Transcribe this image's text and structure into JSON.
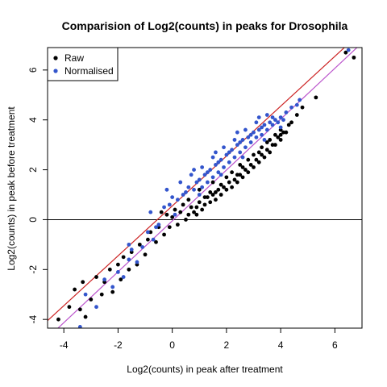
{
  "chart_data": {
    "type": "scatter",
    "title": "Comparision of Log2(counts) in peaks for Drosophila",
    "xlabel": "Log2(counts) in peak after treatment",
    "ylabel": "Log2(counts) in peak before treatment",
    "xlim": [
      -4.6,
      7.0
    ],
    "ylim": [
      -4.35,
      6.9
    ],
    "x_ticks": [
      -4,
      -2,
      0,
      2,
      4,
      6
    ],
    "y_ticks": [
      -4,
      -2,
      0,
      2,
      4,
      6
    ],
    "grid": false,
    "legend_position": "top-left",
    "legend": [
      {
        "label": "Raw",
        "color": "#000000"
      },
      {
        "label": "Normalised",
        "color": "#3355cc"
      }
    ],
    "reference_lines": [
      {
        "type": "hline",
        "y": 0,
        "color": "#000000"
      },
      {
        "type": "abline",
        "intercept": 0.55,
        "slope": 1.0,
        "color": "#cc2222"
      },
      {
        "type": "abline",
        "intercept": -0.05,
        "slope": 1.02,
        "color": "#bb55cc"
      }
    ],
    "series": [
      {
        "name": "Raw",
        "color": "#000000",
        "points": [
          [
            -4.2,
            -4.0
          ],
          [
            -3.8,
            -3.5
          ],
          [
            -3.6,
            -2.8
          ],
          [
            -3.4,
            -3.6
          ],
          [
            -3.3,
            -2.5
          ],
          [
            -3.2,
            -3.9
          ],
          [
            -3.0,
            -3.2
          ],
          [
            -2.8,
            -2.3
          ],
          [
            -2.6,
            -3.0
          ],
          [
            -2.5,
            -2.5
          ],
          [
            -2.3,
            -2.0
          ],
          [
            -2.2,
            -2.9
          ],
          [
            -2.0,
            -1.8
          ],
          [
            -1.9,
            -2.4
          ],
          [
            -1.8,
            -1.5
          ],
          [
            -1.6,
            -2.0
          ],
          [
            -1.5,
            -1.3
          ],
          [
            -1.3,
            -1.8
          ],
          [
            -1.2,
            -1.0
          ],
          [
            -1.0,
            -1.4
          ],
          [
            -0.9,
            -0.8
          ],
          [
            -0.8,
            -0.5
          ],
          [
            -0.6,
            -0.9
          ],
          [
            -0.5,
            -0.3
          ],
          [
            -0.4,
            0.3
          ],
          [
            -0.3,
            -0.6
          ],
          [
            -0.2,
            0.2
          ],
          [
            -0.1,
            -0.3
          ],
          [
            0.0,
            0.1
          ],
          [
            0.1,
            0.4
          ],
          [
            0.2,
            -0.2
          ],
          [
            0.3,
            0.3
          ],
          [
            0.4,
            0.6
          ],
          [
            0.5,
            0.0
          ],
          [
            0.6,
            0.2
          ],
          [
            0.7,
            0.5
          ],
          [
            0.8,
            0.3
          ],
          [
            0.9,
            0.5
          ],
          [
            1.0,
            0.7
          ],
          [
            1.1,
            0.4
          ],
          [
            1.2,
            0.6
          ],
          [
            1.3,
            0.9
          ],
          [
            1.4,
            0.7
          ],
          [
            1.5,
            1.0
          ],
          [
            1.6,
            0.8
          ],
          [
            1.7,
            1.2
          ],
          [
            1.8,
            1.0
          ],
          [
            1.9,
            1.3
          ],
          [
            2.0,
            1.2
          ],
          [
            2.1,
            1.5
          ],
          [
            2.2,
            1.3
          ],
          [
            2.3,
            1.6
          ],
          [
            2.4,
            1.5
          ],
          [
            2.5,
            1.8
          ],
          [
            2.6,
            1.7
          ],
          [
            2.7,
            2.0
          ],
          [
            2.8,
            1.9
          ],
          [
            2.9,
            2.2
          ],
          [
            3.0,
            2.1
          ],
          [
            3.1,
            2.4
          ],
          [
            3.2,
            2.3
          ],
          [
            3.3,
            2.6
          ],
          [
            3.4,
            2.5
          ],
          [
            3.5,
            2.8
          ],
          [
            3.6,
            2.7
          ],
          [
            3.7,
            3.0
          ],
          [
            3.8,
            3.0
          ],
          [
            3.9,
            3.3
          ],
          [
            4.0,
            3.2
          ],
          [
            4.1,
            3.5
          ],
          [
            4.2,
            3.5
          ],
          [
            4.4,
            3.9
          ],
          [
            4.6,
            4.2
          ],
          [
            4.8,
            4.5
          ],
          [
            5.3,
            4.9
          ],
          [
            6.4,
            6.7
          ],
          [
            6.7,
            6.5
          ],
          [
            1.0,
            1.2
          ],
          [
            1.5,
            1.5
          ],
          [
            2.0,
            1.7
          ],
          [
            2.5,
            2.2
          ],
          [
            3.0,
            2.6
          ],
          [
            3.5,
            3.1
          ],
          [
            4.0,
            3.6
          ],
          [
            1.2,
            0.9
          ],
          [
            1.8,
            1.4
          ],
          [
            2.2,
            1.9
          ],
          [
            2.8,
            2.4
          ],
          [
            3.3,
            2.9
          ],
          [
            3.8,
            3.4
          ],
          [
            0.6,
            0.8
          ],
          [
            1.4,
            1.1
          ],
          [
            2.6,
            2.1
          ],
          [
            3.6,
            3.2
          ],
          [
            4.3,
            3.8
          ],
          [
            0.9,
            0.2
          ],
          [
            1.6,
            1.1
          ],
          [
            2.4,
            1.8
          ],
          [
            3.2,
            2.7
          ],
          [
            4.0,
            3.4
          ]
        ]
      },
      {
        "name": "Normalised",
        "color": "#3355cc",
        "points": [
          [
            -3.4,
            -4.3
          ],
          [
            -3.2,
            -3.0
          ],
          [
            -2.8,
            -3.5
          ],
          [
            -2.5,
            -2.4
          ],
          [
            -2.2,
            -2.7
          ],
          [
            -2.0,
            -2.1
          ],
          [
            -1.8,
            -2.3
          ],
          [
            -1.6,
            -1.6
          ],
          [
            -1.5,
            -1.2
          ],
          [
            -1.3,
            -1.7
          ],
          [
            -1.1,
            -1.1
          ],
          [
            -0.9,
            -0.5
          ],
          [
            -0.7,
            -0.8
          ],
          [
            -0.5,
            -0.2
          ],
          [
            -0.3,
            0.5
          ],
          [
            -0.1,
            0.6
          ],
          [
            0.0,
            0.9
          ],
          [
            0.2,
            0.8
          ],
          [
            0.4,
            1.0
          ],
          [
            0.6,
            1.3
          ],
          [
            0.8,
            1.2
          ],
          [
            1.0,
            1.6
          ],
          [
            1.1,
            1.3
          ],
          [
            1.2,
            1.8
          ],
          [
            1.3,
            1.5
          ],
          [
            1.4,
            2.0
          ],
          [
            1.5,
            1.7
          ],
          [
            1.6,
            2.2
          ],
          [
            1.7,
            1.9
          ],
          [
            1.8,
            2.4
          ],
          [
            1.9,
            2.1
          ],
          [
            2.0,
            2.6
          ],
          [
            2.1,
            2.3
          ],
          [
            2.2,
            2.8
          ],
          [
            2.3,
            2.5
          ],
          [
            2.4,
            3.0
          ],
          [
            2.5,
            2.7
          ],
          [
            2.6,
            3.2
          ],
          [
            2.7,
            2.9
          ],
          [
            2.8,
            3.3
          ],
          [
            2.9,
            3.1
          ],
          [
            3.0,
            3.5
          ],
          [
            3.1,
            3.3
          ],
          [
            3.2,
            3.6
          ],
          [
            3.3,
            3.4
          ],
          [
            3.4,
            3.8
          ],
          [
            3.5,
            3.6
          ],
          [
            3.6,
            3.9
          ],
          [
            3.7,
            3.8
          ],
          [
            3.8,
            4.0
          ],
          [
            3.9,
            3.9
          ],
          [
            4.0,
            4.1
          ],
          [
            4.1,
            4.0
          ],
          [
            4.2,
            4.3
          ],
          [
            4.4,
            4.5
          ],
          [
            4.6,
            4.6
          ],
          [
            4.7,
            4.8
          ],
          [
            6.5,
            6.8
          ],
          [
            0.5,
            1.1
          ],
          [
            0.9,
            1.5
          ],
          [
            1.3,
            1.9
          ],
          [
            1.7,
            2.3
          ],
          [
            2.1,
            2.7
          ],
          [
            2.5,
            3.1
          ],
          [
            2.9,
            3.4
          ],
          [
            3.3,
            3.7
          ],
          [
            3.7,
            4.1
          ],
          [
            0.7,
            1.8
          ],
          [
            1.1,
            2.1
          ],
          [
            1.5,
            2.5
          ],
          [
            1.9,
            2.9
          ],
          [
            2.3,
            3.2
          ],
          [
            2.7,
            3.6
          ],
          [
            3.1,
            3.9
          ],
          [
            3.5,
            4.2
          ],
          [
            0.3,
            1.5
          ],
          [
            0.8,
            2.0
          ],
          [
            1.6,
            2.7
          ],
          [
            2.4,
            3.5
          ],
          [
            3.2,
            4.1
          ],
          [
            1.0,
            1.0
          ],
          [
            1.8,
            1.8
          ],
          [
            2.6,
            2.5
          ],
          [
            3.4,
            3.2
          ],
          [
            4.0,
            3.7
          ],
          [
            -0.8,
            0.3
          ],
          [
            -0.6,
            -0.3
          ],
          [
            0.1,
            0.2
          ],
          [
            -1.6,
            -1.0
          ],
          [
            -0.2,
            1.2
          ]
        ]
      }
    ]
  }
}
